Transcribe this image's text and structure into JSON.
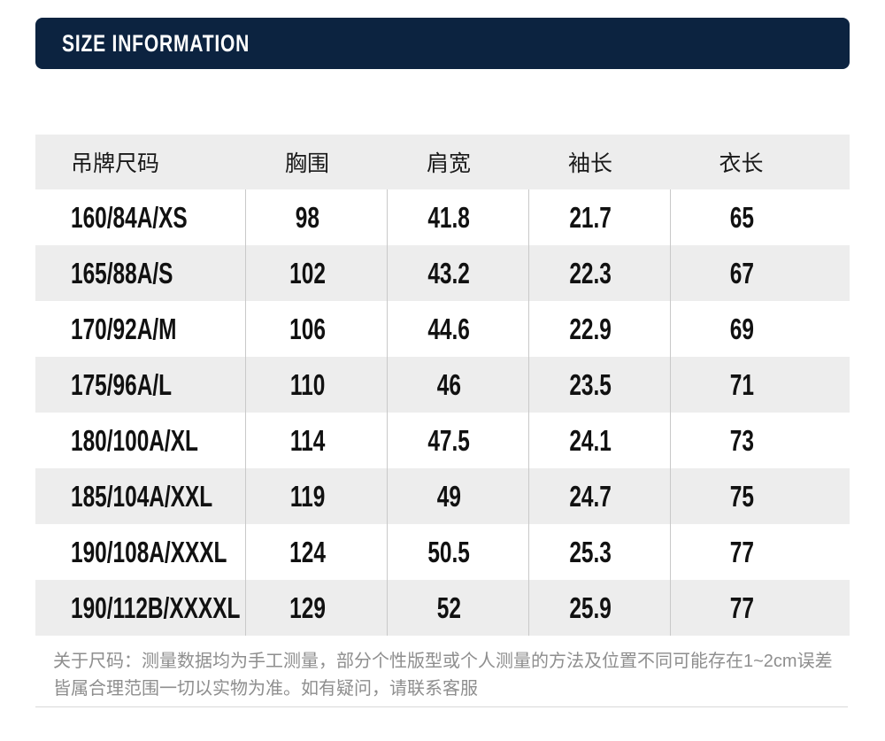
{
  "colors": {
    "navy": "#0c2340",
    "stripe": "#ededed",
    "divider": "#c9c9c9",
    "note-gray": "#8e8e8e",
    "rule": "#d9d9d9"
  },
  "header": {
    "title": "SIZE INFORMATION"
  },
  "table": {
    "columns": [
      "吊牌尺码",
      "胸围",
      "肩宽",
      "袖长",
      "衣长"
    ],
    "rows": [
      {
        "size": "160/84A/XS",
        "chest": "98",
        "shoulder": "41.8",
        "sleeve": "21.7",
        "length": "65"
      },
      {
        "size": "165/88A/S",
        "chest": "102",
        "shoulder": "43.2",
        "sleeve": "22.3",
        "length": "67"
      },
      {
        "size": "170/92A/M",
        "chest": "106",
        "shoulder": "44.6",
        "sleeve": "22.9",
        "length": "69"
      },
      {
        "size": "175/96A/L",
        "chest": "110",
        "shoulder": "46",
        "sleeve": "23.5",
        "length": "71"
      },
      {
        "size": "180/100A/XL",
        "chest": "114",
        "shoulder": "47.5",
        "sleeve": "24.1",
        "length": "73"
      },
      {
        "size": "185/104A/XXL",
        "chest": "119",
        "shoulder": "49",
        "sleeve": "24.7",
        "length": "75"
      },
      {
        "size": "190/108A/XXXL",
        "chest": "124",
        "shoulder": "50.5",
        "sleeve": "25.3",
        "length": "77"
      },
      {
        "size": "190/112B/XXXXL",
        "chest": "129",
        "shoulder": "52",
        "sleeve": "25.9",
        "length": "77"
      }
    ]
  },
  "footnote": {
    "line1": "关于尺码：测量数据均为手工测量，部分个性版型或个人测量的方法及位置不同可能存在1~2cm误差",
    "line2": "皆属合理范围一切以实物为准。如有疑问，请联系客服"
  }
}
